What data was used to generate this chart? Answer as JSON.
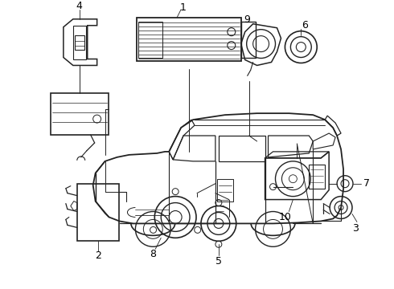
{
  "background_color": "#ffffff",
  "line_color": "#222222",
  "figsize": [
    4.9,
    3.6
  ],
  "dpi": 100,
  "label_fontsize": 8.5,
  "label_color": "#000000"
}
